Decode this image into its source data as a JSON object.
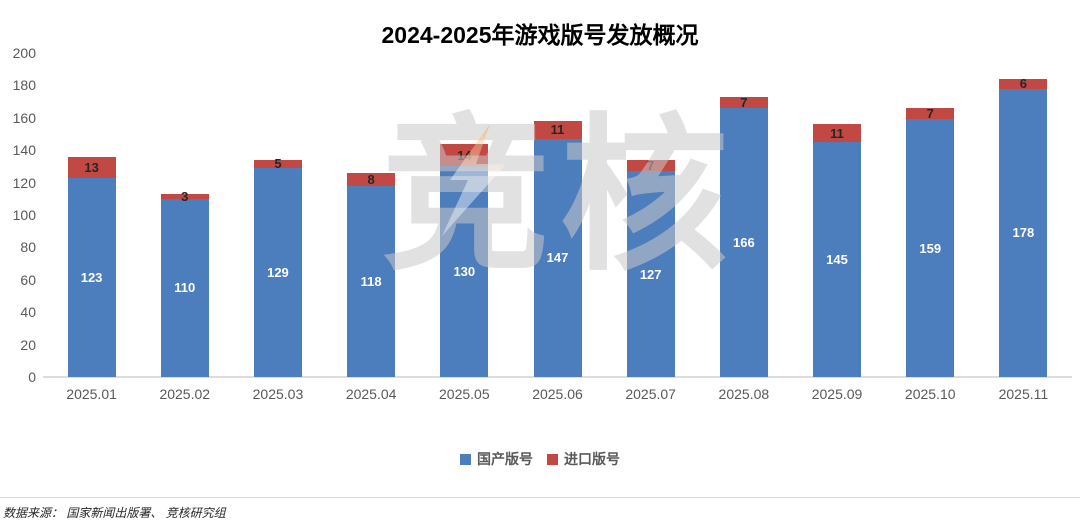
{
  "chart_data": {
    "type": "bar",
    "stacked": true,
    "title": "2024-2025年游戏版号发放概况",
    "categories": [
      "2025.01",
      "2025.02",
      "2025.03",
      "2025.04",
      "2025.05",
      "2025.06",
      "2025.07",
      "2025.08",
      "2025.09",
      "2025.10",
      "2025.11"
    ],
    "series": [
      {
        "name": "国产版号",
        "color": "#4C7DBD",
        "label_color": "#ffffff",
        "values": [
          123,
          110,
          129,
          118,
          130,
          147,
          127,
          166,
          145,
          159,
          178
        ]
      },
      {
        "name": "进口版号",
        "color": "#C24843",
        "label_color": "#262626",
        "values": [
          13,
          3,
          5,
          8,
          14,
          11,
          7,
          7,
          11,
          7,
          6
        ]
      }
    ],
    "ylim": [
      0,
      200
    ],
    "ytick_step": 20,
    "grid": false,
    "legend_position": "bottom",
    "tick_label_color": "#595959",
    "axis_line_color": "#dcdcdc"
  },
  "watermark": {
    "text": "竞核",
    "color": "#c9c9c9",
    "lightning_color": "#F39C3C"
  },
  "footer": {
    "source": "数据来源： 国家新闻出版署、 竞核研究组"
  }
}
